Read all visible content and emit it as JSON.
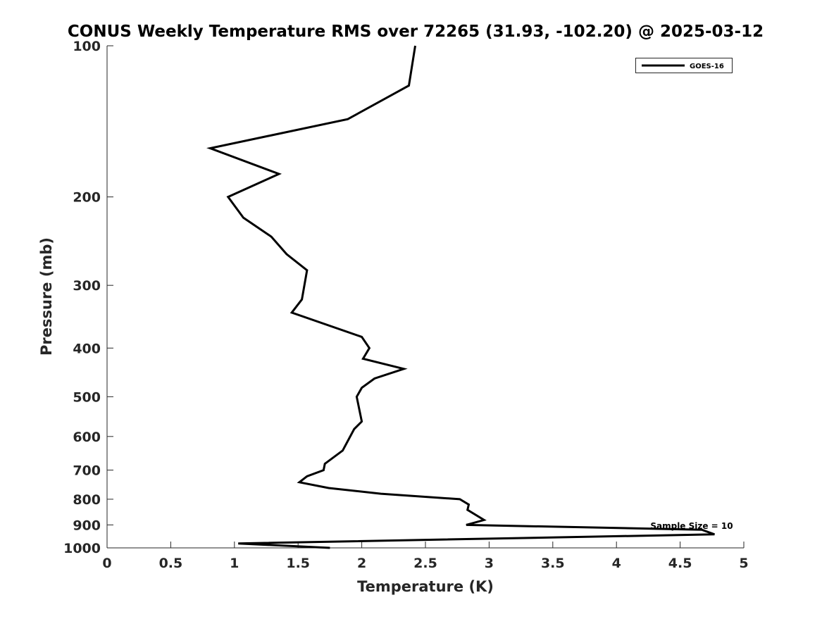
{
  "chart_data": {
    "type": "line",
    "title": "CONUS Weekly Temperature RMS over 72265 (31.93, -102.20) @ 2025-03-12",
    "xlabel": "Temperature (K)",
    "ylabel": "Pressure (mb)",
    "xlim": [
      0,
      5
    ],
    "ylim": [
      100,
      1000
    ],
    "yscale": "log",
    "yreversed": true,
    "grid": false,
    "xticks": [
      0,
      0.5,
      1,
      1.5,
      2,
      2.5,
      3,
      3.5,
      4,
      4.5,
      5
    ],
    "xtick_labels": [
      "0",
      "0.5",
      "1",
      "1.5",
      "2",
      "2.5",
      "3",
      "3.5",
      "4",
      "4.5",
      "5"
    ],
    "yticks": [
      100,
      200,
      300,
      400,
      500,
      600,
      700,
      800,
      900,
      1000
    ],
    "ytick_labels": [
      "100",
      "200",
      "300",
      "400",
      "500",
      "600",
      "700",
      "800",
      "900",
      "1000"
    ],
    "legend": {
      "placement": "top-right",
      "entries": [
        "GOES-16"
      ]
    },
    "annotation": "Sample Size = 10",
    "series": [
      {
        "name": "GOES-16",
        "color": "#000000",
        "x": [
          2.42,
          2.37,
          1.89,
          0.81,
          1.35,
          0.95,
          1.07,
          1.29,
          1.41,
          1.57,
          1.53,
          1.45,
          2.0,
          2.06,
          2.01,
          2.33,
          2.1,
          2.0,
          1.96,
          2.0,
          1.94,
          1.85,
          1.71,
          1.7,
          1.57,
          1.51,
          1.74,
          2.15,
          2.77,
          2.84,
          2.83,
          2.96,
          2.82,
          4.67,
          4.77,
          1.03,
          1.75
        ],
        "y": [
          100,
          120,
          140,
          160,
          180,
          200,
          220,
          240,
          260,
          280,
          320,
          340,
          380,
          400,
          420,
          440,
          460,
          480,
          500,
          560,
          580,
          640,
          680,
          700,
          720,
          740,
          760,
          780,
          800,
          820,
          840,
          880,
          900,
          920,
          940,
          980,
          1000
        ]
      }
    ]
  }
}
